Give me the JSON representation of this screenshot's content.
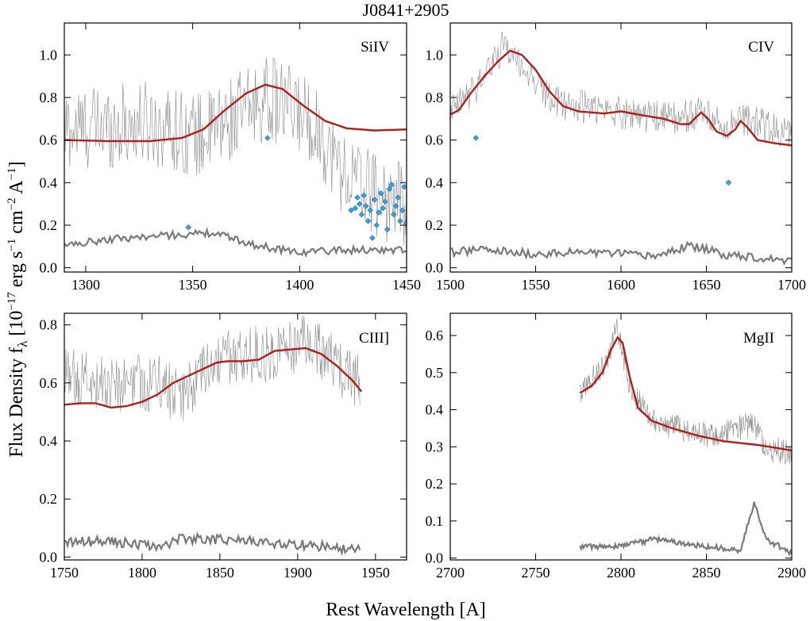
{
  "figure": {
    "title": "J0841+2905",
    "xlabel": "Rest Wavelength [A]",
    "ylabel_main": "Flux Density f",
    "ylabel_sub": "λ",
    "ylabel_units": "[10",
    "ylabel_units_exp": "−17",
    "ylabel_units_rest": " erg s",
    "ylabel_units_exp2": "−1",
    "ylabel_units_rest2": " cm",
    "ylabel_units_exp3": "−2",
    "ylabel_units_rest3": " A",
    "ylabel_units_exp4": "−1",
    "ylabel_units_close": "]",
    "colors": {
      "spectrum": "#8a8a8a",
      "error": "#7a7a7a",
      "model": "#b01e1e",
      "masked": "#3aa0e0"
    }
  },
  "chart_data": [
    {
      "type": "line",
      "panel_label": "SiIV",
      "xlim": [
        1290,
        1450
      ],
      "ylim": [
        -0.02,
        1.15
      ],
      "xticks": [
        1300,
        1350,
        1400,
        1450
      ],
      "yticks": [
        0.0,
        0.2,
        0.4,
        0.6,
        0.8,
        1.0
      ],
      "ytick_labels": [
        "0.0",
        "0.2",
        "0.4",
        "0.6",
        "0.8",
        "1.0"
      ],
      "spectrum": {
        "x_start": 1290,
        "x_end": 1450,
        "base": [
          [
            1290,
            0.65
          ],
          [
            1330,
            0.68
          ],
          [
            1355,
            0.62
          ],
          [
            1385,
            0.8
          ],
          [
            1405,
            0.7
          ],
          [
            1420,
            0.45
          ],
          [
            1440,
            0.32
          ],
          [
            1450,
            0.3
          ]
        ],
        "noise": 0.2
      },
      "model": [
        [
          1290,
          0.6
        ],
        [
          1310,
          0.595
        ],
        [
          1330,
          0.595
        ],
        [
          1345,
          0.61
        ],
        [
          1355,
          0.65
        ],
        [
          1365,
          0.74
        ],
        [
          1375,
          0.82
        ],
        [
          1384,
          0.86
        ],
        [
          1392,
          0.84
        ],
        [
          1402,
          0.76
        ],
        [
          1412,
          0.69
        ],
        [
          1422,
          0.655
        ],
        [
          1435,
          0.645
        ],
        [
          1450,
          0.65
        ]
      ],
      "error": {
        "x_start": 1290,
        "x_end": 1450,
        "base": [
          [
            1290,
            0.1
          ],
          [
            1310,
            0.13
          ],
          [
            1340,
            0.15
          ],
          [
            1360,
            0.16
          ],
          [
            1380,
            0.1
          ],
          [
            1400,
            0.07
          ],
          [
            1420,
            0.08
          ],
          [
            1450,
            0.08
          ]
        ],
        "noise": 0.035
      },
      "masked": [
        [
          1348,
          0.19
        ],
        [
          1385,
          0.61
        ],
        [
          1424,
          0.27
        ],
        [
          1426,
          0.28
        ],
        [
          1427,
          0.33
        ],
        [
          1428,
          0.3
        ],
        [
          1429,
          0.25
        ],
        [
          1430,
          0.34
        ],
        [
          1431,
          0.29
        ],
        [
          1432,
          0.22
        ],
        [
          1433,
          0.27
        ],
        [
          1434,
          0.14
        ],
        [
          1435,
          0.32
        ],
        [
          1436,
          0.2
        ],
        [
          1437,
          0.26
        ],
        [
          1438,
          0.35
        ],
        [
          1439,
          0.28
        ],
        [
          1440,
          0.31
        ],
        [
          1441,
          0.18
        ],
        [
          1442,
          0.37
        ],
        [
          1443,
          0.39
        ],
        [
          1444,
          0.25
        ],
        [
          1445,
          0.29
        ],
        [
          1446,
          0.33
        ],
        [
          1447,
          0.22
        ],
        [
          1448,
          0.27
        ],
        [
          1449,
          0.38
        ],
        [
          1450,
          0.21
        ]
      ]
    },
    {
      "type": "line",
      "panel_label": "CIV",
      "xlim": [
        1500,
        1700
      ],
      "ylim": [
        -0.02,
        1.15
      ],
      "xticks": [
        1500,
        1550,
        1600,
        1650,
        1700
      ],
      "yticks": [
        0.0,
        0.2,
        0.4,
        0.6,
        0.8,
        1.0
      ],
      "ytick_labels": [
        "0.0",
        "0.2",
        "0.4",
        "0.6",
        "0.8",
        "1.0"
      ],
      "spectrum": {
        "x_start": 1500,
        "x_end": 1700,
        "base": [
          [
            1500,
            0.72
          ],
          [
            1515,
            0.85
          ],
          [
            1532,
            1.05
          ],
          [
            1545,
            0.92
          ],
          [
            1560,
            0.78
          ],
          [
            1600,
            0.73
          ],
          [
            1630,
            0.7
          ],
          [
            1648,
            0.73
          ],
          [
            1660,
            0.66
          ],
          [
            1672,
            0.7
          ],
          [
            1700,
            0.62
          ]
        ],
        "noise": 0.08
      },
      "model": [
        [
          1500,
          0.72
        ],
        [
          1505,
          0.74
        ],
        [
          1512,
          0.82
        ],
        [
          1520,
          0.9
        ],
        [
          1528,
          0.97
        ],
        [
          1535,
          1.02
        ],
        [
          1542,
          1.0
        ],
        [
          1550,
          0.93
        ],
        [
          1558,
          0.83
        ],
        [
          1566,
          0.76
        ],
        [
          1575,
          0.735
        ],
        [
          1590,
          0.725
        ],
        [
          1600,
          0.735
        ],
        [
          1610,
          0.72
        ],
        [
          1625,
          0.7
        ],
        [
          1635,
          0.675
        ],
        [
          1640,
          0.675
        ],
        [
          1643,
          0.7
        ],
        [
          1647,
          0.73
        ],
        [
          1651,
          0.7
        ],
        [
          1656,
          0.64
        ],
        [
          1662,
          0.62
        ],
        [
          1667,
          0.65
        ],
        [
          1670,
          0.69
        ],
        [
          1674,
          0.66
        ],
        [
          1680,
          0.6
        ],
        [
          1690,
          0.585
        ],
        [
          1700,
          0.575
        ]
      ],
      "error": {
        "x_start": 1500,
        "x_end": 1700,
        "base": [
          [
            1500,
            0.07
          ],
          [
            1520,
            0.08
          ],
          [
            1550,
            0.06
          ],
          [
            1580,
            0.07
          ],
          [
            1620,
            0.05
          ],
          [
            1640,
            0.1
          ],
          [
            1660,
            0.06
          ],
          [
            1700,
            0.03
          ]
        ],
        "noise": 0.04
      },
      "masked": [
        [
          1515,
          0.61
        ],
        [
          1663,
          0.4
        ]
      ]
    },
    {
      "type": "line",
      "panel_label": "CIII]",
      "xlim": [
        1750,
        1970
      ],
      "ylim": [
        -0.01,
        0.84
      ],
      "xticks": [
        1750,
        1800,
        1850,
        1900,
        1950
      ],
      "yticks": [
        0.0,
        0.2,
        0.4,
        0.6,
        0.8
      ],
      "ytick_labels": [
        "0.0",
        "0.2",
        "0.4",
        "0.6",
        "0.8"
      ],
      "spectrum": {
        "x_start": 1750,
        "x_end": 1940,
        "base": [
          [
            1750,
            0.62
          ],
          [
            1780,
            0.6
          ],
          [
            1810,
            0.6
          ],
          [
            1825,
            0.55
          ],
          [
            1850,
            0.68
          ],
          [
            1880,
            0.7
          ],
          [
            1905,
            0.74
          ],
          [
            1925,
            0.66
          ],
          [
            1940,
            0.6
          ]
        ],
        "noise": 0.1
      },
      "model": [
        [
          1750,
          0.525
        ],
        [
          1760,
          0.53
        ],
        [
          1770,
          0.53
        ],
        [
          1780,
          0.515
        ],
        [
          1790,
          0.52
        ],
        [
          1800,
          0.535
        ],
        [
          1810,
          0.56
        ],
        [
          1820,
          0.6
        ],
        [
          1830,
          0.625
        ],
        [
          1840,
          0.65
        ],
        [
          1848,
          0.67
        ],
        [
          1855,
          0.675
        ],
        [
          1865,
          0.675
        ],
        [
          1875,
          0.68
        ],
        [
          1885,
          0.71
        ],
        [
          1895,
          0.715
        ],
        [
          1905,
          0.72
        ],
        [
          1915,
          0.7
        ],
        [
          1925,
          0.66
        ],
        [
          1935,
          0.61
        ],
        [
          1941,
          0.57
        ]
      ],
      "error": {
        "x_start": 1750,
        "x_end": 1940,
        "base": [
          [
            1750,
            0.05
          ],
          [
            1780,
            0.05
          ],
          [
            1810,
            0.03
          ],
          [
            1825,
            0.06
          ],
          [
            1840,
            0.06
          ],
          [
            1870,
            0.05
          ],
          [
            1900,
            0.04
          ],
          [
            1940,
            0.02
          ]
        ],
        "noise": 0.035
      },
      "masked": []
    },
    {
      "type": "line",
      "panel_label": "MgII",
      "xlim": [
        2700,
        2900
      ],
      "ylim": [
        -0.005,
        0.66
      ],
      "xticks": [
        2700,
        2750,
        2800,
        2850,
        2900
      ],
      "yticks": [
        0.0,
        0.1,
        0.2,
        0.3,
        0.4,
        0.5,
        0.6
      ],
      "ytick_labels": [
        "0.0",
        "0.1",
        "0.2",
        "0.3",
        "0.4",
        "0.5",
        "0.6"
      ],
      "spectrum": {
        "x_start": 2776,
        "x_end": 2900,
        "base": [
          [
            2776,
            0.45
          ],
          [
            2790,
            0.52
          ],
          [
            2798,
            0.62
          ],
          [
            2806,
            0.45
          ],
          [
            2820,
            0.37
          ],
          [
            2850,
            0.33
          ],
          [
            2877,
            0.36
          ],
          [
            2885,
            0.3
          ],
          [
            2900,
            0.28
          ]
        ],
        "noise": 0.035
      },
      "model": [
        [
          2776,
          0.445
        ],
        [
          2783,
          0.465
        ],
        [
          2789,
          0.5
        ],
        [
          2794,
          0.56
        ],
        [
          2798,
          0.595
        ],
        [
          2801,
          0.58
        ],
        [
          2805,
          0.49
        ],
        [
          2810,
          0.405
        ],
        [
          2818,
          0.37
        ],
        [
          2830,
          0.35
        ],
        [
          2845,
          0.33
        ],
        [
          2860,
          0.315
        ],
        [
          2880,
          0.305
        ],
        [
          2900,
          0.29
        ]
      ],
      "error": {
        "x_start": 2776,
        "x_end": 2900,
        "base": [
          [
            2776,
            0.03
          ],
          [
            2800,
            0.03
          ],
          [
            2820,
            0.05
          ],
          [
            2850,
            0.03
          ],
          [
            2870,
            0.02
          ],
          [
            2878,
            0.15
          ],
          [
            2885,
            0.05
          ],
          [
            2900,
            0.01
          ]
        ],
        "noise": 0.015
      },
      "masked": []
    }
  ]
}
